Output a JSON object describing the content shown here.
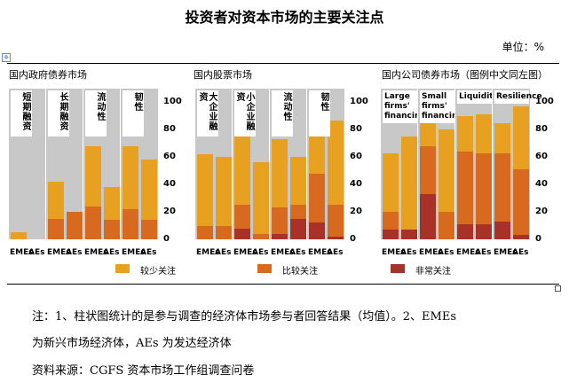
{
  "title": "投资者对资本市场的主要关注点",
  "unit": "单位：%",
  "colors": {
    "light": "#e8a020",
    "mid": "#d86a20",
    "dark": "#a83228",
    "bg": "#c8c8c8"
  },
  "panels": [
    {
      "title": "国内政府债券市场",
      "categories": [
        {
          "label": "短期融资",
          "values": {
            "EMEs": [
              5,
              0,
              0
            ],
            "AEs": [
              0,
              0,
              0
            ]
          }
        },
        {
          "label": "长期融资",
          "values": {
            "EMEs": [
              42,
              15,
              0
            ],
            "AEs": [
              20,
              20,
              0
            ]
          }
        },
        {
          "label": "流动性",
          "values": {
            "EMEs": [
              68,
              24,
              0
            ],
            "AEs": [
              38,
              14,
              0
            ]
          }
        },
        {
          "label": "韧性",
          "values": {
            "EMEs": [
              68,
              22,
              0
            ],
            "AEs": [
              58,
              14,
              0
            ]
          }
        }
      ]
    },
    {
      "title": "国内股票市场",
      "categories": [
        {
          "label": "大企业融资",
          "values": {
            "EMEs": [
              62,
              10,
              0
            ],
            "AEs": [
              60,
              10,
              0
            ]
          }
        },
        {
          "label": "小企业融资",
          "values": {
            "EMEs": [
              75,
              25,
              8
            ],
            "AEs": [
              56,
              4,
              0
            ]
          }
        },
        {
          "label": "流动性",
          "values": {
            "EMEs": [
              73,
              23,
              4
            ],
            "AEs": [
              60,
              25,
              15
            ]
          }
        },
        {
          "label": "韧性",
          "values": {
            "EMEs": [
              90,
              48,
              12
            ],
            "AEs": [
              87,
              25,
              2
            ]
          }
        }
      ]
    },
    {
      "title": "国内公司债券市场（图例中文同左图）",
      "categories": [
        {
          "label": "Large firms' financing",
          "values": {
            "EMEs": [
              63,
              20,
              7
            ],
            "AEs": [
              75,
              0,
              7
            ]
          }
        },
        {
          "label": "Small firms' financing",
          "values": {
            "EMEs": [
              88,
              68,
              33
            ],
            "AEs": [
              80,
              20,
              0
            ]
          }
        },
        {
          "label": "Liquidity",
          "values": {
            "EMEs": [
              90,
              64,
              11
            ],
            "AEs": [
              91,
              63,
              11
            ]
          }
        },
        {
          "label": "Resilience",
          "values": {
            "EMEs": [
              85,
              63,
              13
            ],
            "AEs": [
              97,
              51,
              3
            ]
          }
        }
      ]
    }
  ],
  "y_ticks": [
    "100",
    "80",
    "60",
    "40",
    "20",
    "0"
  ],
  "x_labels": {
    "emes": "EMEs",
    "aes": "AEs"
  },
  "legend": [
    "较少关注",
    "比较关注",
    "非常关注"
  ],
  "notes": {
    "line1": "注：1、柱状图统计的是参与调查的经济体市场参与者回答结果（均值）。2、EMEs",
    "line2": "为新兴市场经济体，AEs 为发达经济体",
    "line3": "资料来源：CGFS 资本市场工作组调查问卷"
  }
}
